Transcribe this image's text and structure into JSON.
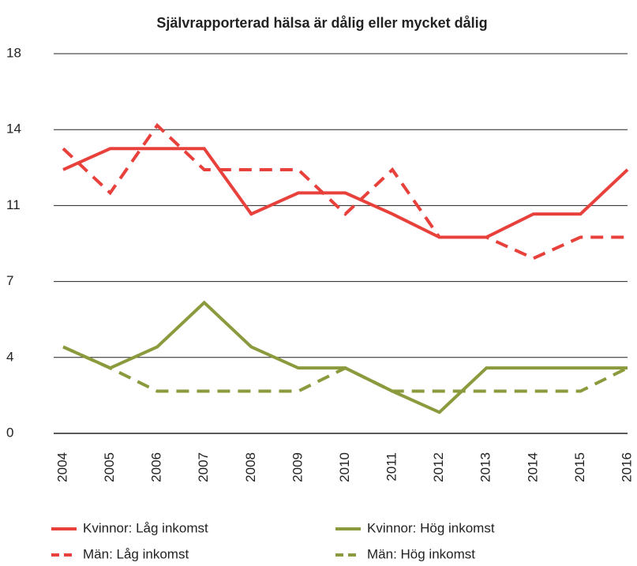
{
  "chart_data": {
    "type": "line",
    "title": "Självrapporterad hälsa är dålig eller mycket dålig",
    "categories": [
      "2004",
      "2005",
      "2006",
      "2007",
      "2008",
      "2009",
      "2010",
      "2011",
      "2012",
      "2013",
      "2014",
      "2015",
      "2016"
    ],
    "series": [
      {
        "name": "Kvinnor: Låg inkomst",
        "color": "#e8413c",
        "dash": false,
        "values": [
          12.5,
          13.5,
          13.5,
          13.5,
          10.4,
          11.4,
          11.4,
          10.4,
          9.3,
          9.3,
          10.4,
          10.4,
          12.5
        ]
      },
      {
        "name": "Kvinnor: Hög inkomst",
        "color": "#8a9a3c",
        "dash": false,
        "values": [
          4.1,
          3.1,
          4.1,
          6.2,
          4.1,
          3.1,
          3.1,
          2.0,
          1.0,
          3.1,
          3.1,
          3.1,
          3.1
        ]
      },
      {
        "name": "Män: Låg inkomst",
        "color": "#e8413c",
        "dash": true,
        "values": [
          13.5,
          11.4,
          14.6,
          12.5,
          12.5,
          12.5,
          10.4,
          12.5,
          9.3,
          9.3,
          8.3,
          9.3,
          9.3
        ]
      },
      {
        "name": "Män: Hög inkomst",
        "color": "#8a9a3c",
        "dash": true,
        "values": [
          4.1,
          3.1,
          2.0,
          2.0,
          2.0,
          2.0,
          3.1,
          2.0,
          2.0,
          2.0,
          2.0,
          2.0,
          3.1
        ]
      }
    ],
    "ylim": [
      0,
      18
    ],
    "yticks": [
      0,
      {
        "value": 3.6,
        "label": "4"
      },
      {
        "value": 7.2,
        "label": "7"
      },
      {
        "value": 10.8,
        "label": "11"
      },
      {
        "value": 14.4,
        "label": "14"
      },
      18
    ],
    "grid": true
  }
}
